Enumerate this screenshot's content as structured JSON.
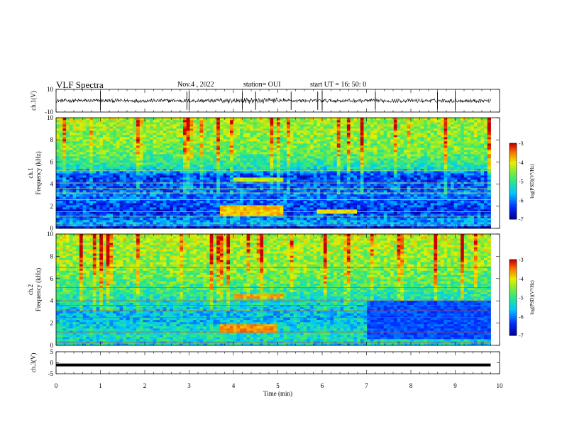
{
  "header": {
    "title": "VLF Spectra",
    "date": "Nov.4 , 2022",
    "station": "station= OUI",
    "start": "start UT = 16: 50: 0"
  },
  "chart_data": [
    {
      "type": "line",
      "panel": "ch1-waveform",
      "ylabel": "ch.1(V)",
      "ylim": [
        -10,
        10
      ],
      "yticks": [
        10,
        -10
      ],
      "xlim": [
        0,
        10
      ],
      "baseline": 0,
      "spikes_at_min": [
        1.0,
        2.95,
        3.0,
        4.2,
        4.5,
        5.3,
        5.9,
        6.0,
        7.2,
        8.6,
        9.0
      ]
    },
    {
      "type": "heatmap",
      "panel": "ch1-spectrogram",
      "ylabel": "ch.1\nFrequency (kHz)",
      "xlim": [
        0,
        10
      ],
      "ylim": [
        0,
        10
      ],
      "yticks": [
        0,
        2,
        4,
        6,
        8,
        10
      ],
      "data_end_min": 9.8,
      "colorbar": {
        "label": "log(PSD)(V²/Hz)",
        "range": [
          -7,
          -3
        ],
        "ticks": [
          -3,
          -4,
          -5,
          -6,
          -7
        ]
      },
      "background_level_by_freq_khz": [
        {
          "f": 0.0,
          "level": -6.8
        },
        {
          "f": 0.5,
          "level": -5.6
        },
        {
          "f": 1.5,
          "level": -6.4
        },
        {
          "f": 3.0,
          "level": -6.0
        },
        {
          "f": 4.8,
          "level": -6.3
        },
        {
          "f": 5.5,
          "level": -5.2
        },
        {
          "f": 7.0,
          "level": -4.6
        },
        {
          "f": 10.0,
          "level": -4.3
        }
      ],
      "emission_patches": [
        {
          "t0": 3.7,
          "t1": 5.1,
          "f0": 1.2,
          "f1": 2.2,
          "level": -3.8
        },
        {
          "t0": 4.0,
          "t1": 5.1,
          "f0": 4.2,
          "f1": 4.6,
          "level": -4.2
        },
        {
          "t0": 5.9,
          "t1": 6.8,
          "f0": 1.3,
          "f1": 1.8,
          "level": -3.9
        }
      ]
    },
    {
      "type": "heatmap",
      "panel": "ch2-spectrogram",
      "ylabel": "ch.2\nFrequency (kHz)",
      "xlim": [
        0,
        10
      ],
      "ylim": [
        0,
        10
      ],
      "yticks": [
        0,
        2,
        4,
        6,
        8,
        10
      ],
      "data_end_min": 9.8,
      "colorbar": {
        "label": "log(PSD)(V²/Hz)",
        "range": [
          -7,
          -3
        ],
        "ticks": [
          -3,
          -4,
          -5,
          -6,
          -7
        ]
      },
      "background_level_by_freq_khz": [
        {
          "f": 0.0,
          "level": -5.4
        },
        {
          "f": 1.0,
          "level": -5.2
        },
        {
          "f": 2.5,
          "level": -5.6
        },
        {
          "f": 3.5,
          "level": -5.4
        },
        {
          "f": 5.0,
          "level": -4.9
        },
        {
          "f": 7.0,
          "level": -4.5
        },
        {
          "f": 10.0,
          "level": -4.2
        }
      ],
      "emission_patches": [
        {
          "t0": 3.7,
          "t1": 5.0,
          "f0": 1.2,
          "f1": 2.0,
          "level": -3.6
        },
        {
          "t0": 4.0,
          "t1": 5.1,
          "f0": 4.2,
          "f1": 4.6,
          "level": -3.7
        },
        {
          "t0": 7.0,
          "t1": 9.8,
          "f0": 0.5,
          "f1": 4.0,
          "level": -6.2
        }
      ]
    },
    {
      "type": "line",
      "panel": "ch3-waveform",
      "ylabel": "ch.3(V)",
      "ylim": [
        -5,
        5
      ],
      "yticks": [
        5,
        0,
        -5
      ],
      "xlim": [
        0,
        10
      ],
      "baseline": -1
    }
  ],
  "xaxis": {
    "label": "Time (min)",
    "ticks": [
      "0",
      "1",
      "2",
      "3",
      "4",
      "5",
      "6",
      "7",
      "8",
      "9",
      "10"
    ]
  }
}
